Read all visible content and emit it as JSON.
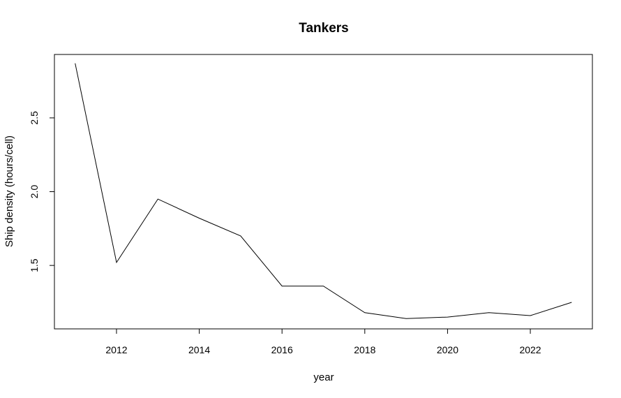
{
  "chart_data": {
    "type": "line",
    "title": "Tankers",
    "xlabel": "year",
    "ylabel": "Ship density (hours/cell)",
    "x": [
      2011,
      2012,
      2013,
      2014,
      2015,
      2016,
      2017,
      2018,
      2019,
      2020,
      2021,
      2022,
      2023
    ],
    "series": [
      {
        "values": [
          2.87,
          1.52,
          1.95,
          1.82,
          1.7,
          1.36,
          1.36,
          1.18,
          1.14,
          1.15,
          1.18,
          1.16,
          1.25
        ]
      }
    ],
    "xlim": [
      2010.5,
      2023.5
    ],
    "ylim": [
      1.07,
      2.93
    ],
    "xticks": [
      2012,
      2014,
      2016,
      2018,
      2020,
      2022
    ],
    "yticks": [
      1.5,
      2.0,
      2.5
    ],
    "xtick_labels": [
      "2012",
      "2014",
      "2016",
      "2018",
      "2020",
      "2022"
    ],
    "ytick_labels": [
      "1.5",
      "2.0",
      "2.5"
    ],
    "grid": false,
    "line_color": "#000000"
  }
}
